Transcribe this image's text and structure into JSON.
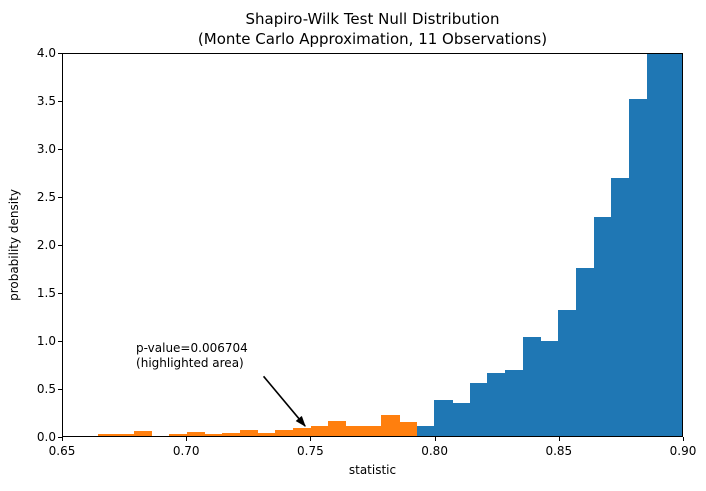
{
  "chart_data": {
    "type": "bar",
    "subtype": "histogram",
    "title": "Shapiro-Wilk Test Null Distribution",
    "subtitle": "(Monte Carlo Approximation, 11 Observations)",
    "xlabel": "statistic",
    "ylabel": "probability density",
    "xlim": [
      0.65,
      0.9
    ],
    "ylim": [
      0.0,
      4.0
    ],
    "x_ticks": [
      "0.65",
      "0.70",
      "0.75",
      "0.80",
      "0.85",
      "0.90"
    ],
    "y_ticks": [
      "0.0",
      "0.5",
      "1.0",
      "1.5",
      "2.0",
      "2.5",
      "3.0",
      "3.5",
      "4.0"
    ],
    "grid": false,
    "legend": "none",
    "bar_color": "#1f77b4",
    "highlight_color": "#ff7f0e",
    "bin_width": 0.0071429,
    "highlight_threshold": 0.7928,
    "bins": [
      {
        "x0": 0.66429,
        "density": 0.02
      },
      {
        "x0": 0.67143,
        "density": 0.02
      },
      {
        "x0": 0.67857,
        "density": 0.05
      },
      {
        "x0": 0.68571,
        "density": 0.0
      },
      {
        "x0": 0.69286,
        "density": 0.025
      },
      {
        "x0": 0.7,
        "density": 0.04
      },
      {
        "x0": 0.70714,
        "density": 0.02
      },
      {
        "x0": 0.71429,
        "density": 0.03
      },
      {
        "x0": 0.72143,
        "density": 0.06
      },
      {
        "x0": 0.72857,
        "density": 0.03
      },
      {
        "x0": 0.73571,
        "density": 0.06
      },
      {
        "x0": 0.74286,
        "density": 0.08
      },
      {
        "x0": 0.75,
        "density": 0.1
      },
      {
        "x0": 0.75714,
        "density": 0.16
      },
      {
        "x0": 0.76429,
        "density": 0.11
      },
      {
        "x0": 0.77143,
        "density": 0.11
      },
      {
        "x0": 0.77857,
        "density": 0.22
      },
      {
        "x0": 0.78571,
        "density": 0.15
      },
      {
        "x0": 0.79286,
        "density": 0.1
      },
      {
        "x0": 0.8,
        "density": 0.38
      },
      {
        "x0": 0.80714,
        "density": 0.35
      },
      {
        "x0": 0.81429,
        "density": 0.56
      },
      {
        "x0": 0.82143,
        "density": 0.66
      },
      {
        "x0": 0.82857,
        "density": 0.69
      },
      {
        "x0": 0.83571,
        "density": 1.04
      },
      {
        "x0": 0.84286,
        "density": 1.0
      },
      {
        "x0": 0.85,
        "density": 1.32
      },
      {
        "x0": 0.85714,
        "density": 1.76
      },
      {
        "x0": 0.86429,
        "density": 2.29
      },
      {
        "x0": 0.87143,
        "density": 2.7
      },
      {
        "x0": 0.87857,
        "density": 3.53
      },
      {
        "x0": 0.88571,
        "density": 4.0
      },
      {
        "x0": 0.89286,
        "density": 4.0
      }
    ],
    "annotation": {
      "line1": "p-value=0.006704",
      "line2": "(highlighted area)",
      "text_x": 0.6795,
      "text_y": 0.99,
      "arrow_from_x": 0.731,
      "arrow_from_y": 0.625,
      "arrow_to_x": 0.7478,
      "arrow_to_y": 0.104,
      "arrow_color": "#000000"
    }
  }
}
